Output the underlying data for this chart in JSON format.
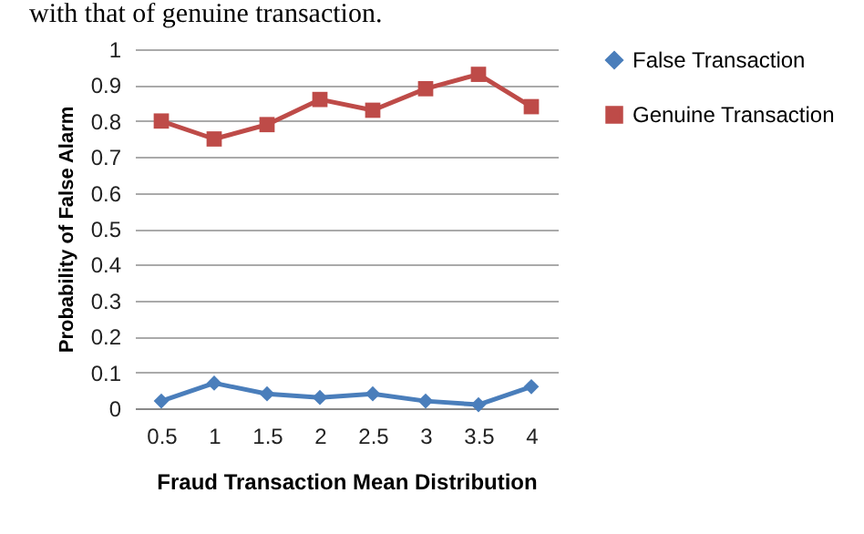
{
  "chart_data": {
    "type": "line",
    "xlabel": "Fraud Transaction Mean Distribution",
    "ylabel": "Probability of False Alarm",
    "annotations": [
      "with that of genuine transaction."
    ],
    "categories": [
      "0.5",
      "1",
      "1.5",
      "2",
      "2.5",
      "3",
      "3.5",
      "4"
    ],
    "series": [
      {
        "name": "False Transaction",
        "color": "#4a7ebb",
        "marker": "diamond",
        "values": [
          0.02,
          0.07,
          0.04,
          0.03,
          0.04,
          0.02,
          0.01,
          0.06
        ]
      },
      {
        "name": "Genuine Transaction",
        "color": "#be4b48",
        "marker": "square",
        "values": [
          0.8,
          0.75,
          0.79,
          0.86,
          0.83,
          0.89,
          0.93,
          0.84
        ]
      }
    ],
    "ylim": [
      0,
      1
    ],
    "yticks": [
      0,
      0.1,
      0.2,
      0.3,
      0.4,
      0.5,
      0.6,
      0.7,
      0.8,
      0.9,
      1
    ],
    "grid": "y",
    "legend": "right"
  }
}
